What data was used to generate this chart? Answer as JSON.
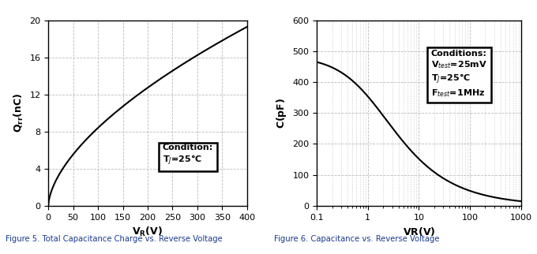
{
  "fig5": {
    "title": "Figure 5. Total Capacitance Charge vs. Reverse Voltage",
    "xlabel_text": "V",
    "xlabel_sub": "R",
    "xlabel_unit": "(V)",
    "ylabel": "Q$_{rr}$(nC)",
    "xlim": [
      0,
      400
    ],
    "ylim": [
      0,
      20
    ],
    "xticks": [
      0,
      50,
      100,
      150,
      200,
      250,
      300,
      350,
      400
    ],
    "yticks": [
      0,
      4,
      8,
      12,
      16,
      20
    ],
    "condition_text_line1": "Condition:",
    "condition_text_line2": "T$_J$=25°C"
  },
  "fig6": {
    "title": "Figure 6. Capacitance vs. Reverse Voltage",
    "xlabel": "VR(V)",
    "ylabel": "C(pF)",
    "xlim_log": [
      0.1,
      1000
    ],
    "ylim": [
      0,
      600
    ],
    "yticks": [
      0,
      100,
      200,
      300,
      400,
      500,
      600
    ],
    "xtick_labels": [
      "0.1",
      "1",
      "10",
      "100",
      "1000"
    ],
    "conditions_line1": "Conditions:",
    "conditions_line2": "V$_{test}$=25mV",
    "conditions_line3": "T$_J$=25°C",
    "conditions_line4": "F$_{test}$=1MHz"
  },
  "line_color": "#000000",
  "line_width": 1.5,
  "grid_color": "#bbbbbb",
  "grid_linestyle": "--",
  "box_facecolor": "#ffffff",
  "box_edgecolor": "#000000",
  "fig_facecolor": "#ffffff",
  "caption_color": "#1a3a8c"
}
